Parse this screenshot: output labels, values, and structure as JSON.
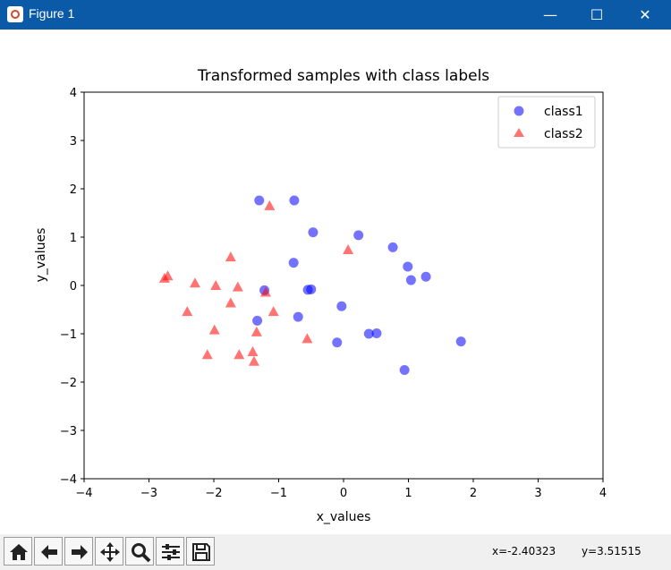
{
  "window": {
    "title": "Figure 1",
    "minimize_glyph": "—",
    "maximize_glyph": "☐",
    "close_glyph": "✕",
    "icon": "matplotlib-icon"
  },
  "toolbar": {
    "buttons": [
      {
        "name": "home",
        "icon": "home-icon"
      },
      {
        "name": "back",
        "icon": "arrow-left-icon"
      },
      {
        "name": "forward",
        "icon": "arrow-right-icon"
      },
      {
        "name": "pan",
        "icon": "move-icon"
      },
      {
        "name": "zoom",
        "icon": "zoom-icon"
      },
      {
        "name": "configure",
        "icon": "sliders-icon"
      },
      {
        "name": "save",
        "icon": "save-icon"
      }
    ],
    "coord_x": "x=-2.40323",
    "coord_y": "y=3.51515"
  },
  "chart_data": {
    "type": "scatter",
    "title": "Transformed samples with class labels",
    "xlabel": "x_values",
    "ylabel": "y_values",
    "xlim": [
      -4,
      4
    ],
    "ylim": [
      -4,
      4
    ],
    "xticks": [
      "−4",
      "−3",
      "−2",
      "−1",
      "0",
      "1",
      "2",
      "3",
      "4"
    ],
    "yticks": [
      "−4",
      "−3",
      "−2",
      "−1",
      "0",
      "1",
      "2",
      "3",
      "4"
    ],
    "grid": false,
    "legend_position": "top-right",
    "series": [
      {
        "name": "class1",
        "marker": "circle",
        "color": "#0000ff",
        "points": [
          [
            -1.3,
            1.76
          ],
          [
            -0.76,
            1.76
          ],
          [
            -0.47,
            1.1
          ],
          [
            0.23,
            1.04
          ],
          [
            0.76,
            0.79
          ],
          [
            -0.77,
            0.47
          ],
          [
            0.99,
            0.39
          ],
          [
            1.04,
            0.11
          ],
          [
            1.27,
            0.18
          ],
          [
            -1.22,
            -0.1
          ],
          [
            -0.55,
            -0.09
          ],
          [
            -0.5,
            -0.08
          ],
          [
            -0.03,
            -0.43
          ],
          [
            -1.33,
            -0.73
          ],
          [
            -0.7,
            -0.65
          ],
          [
            0.39,
            -1.0
          ],
          [
            0.51,
            -0.99
          ],
          [
            -0.1,
            -1.18
          ],
          [
            0.94,
            -1.75
          ],
          [
            1.81,
            -1.16
          ]
        ]
      },
      {
        "name": "class2",
        "marker": "triangle",
        "color": "#ff0000",
        "points": [
          [
            -1.14,
            1.65
          ],
          [
            0.07,
            0.74
          ],
          [
            -1.74,
            0.59
          ],
          [
            -2.76,
            0.15
          ],
          [
            -2.71,
            0.2
          ],
          [
            -2.29,
            0.05
          ],
          [
            -1.97,
            0.0
          ],
          [
            -1.63,
            -0.03
          ],
          [
            -1.2,
            -0.14
          ],
          [
            -1.74,
            -0.36
          ],
          [
            -2.41,
            -0.54
          ],
          [
            -1.08,
            -0.54
          ],
          [
            -1.99,
            -0.92
          ],
          [
            -1.34,
            -0.96
          ],
          [
            -0.56,
            -1.1
          ],
          [
            -2.1,
            -1.43
          ],
          [
            -1.61,
            -1.43
          ],
          [
            -1.4,
            -1.37
          ],
          [
            -1.38,
            -1.57
          ]
        ]
      }
    ]
  }
}
